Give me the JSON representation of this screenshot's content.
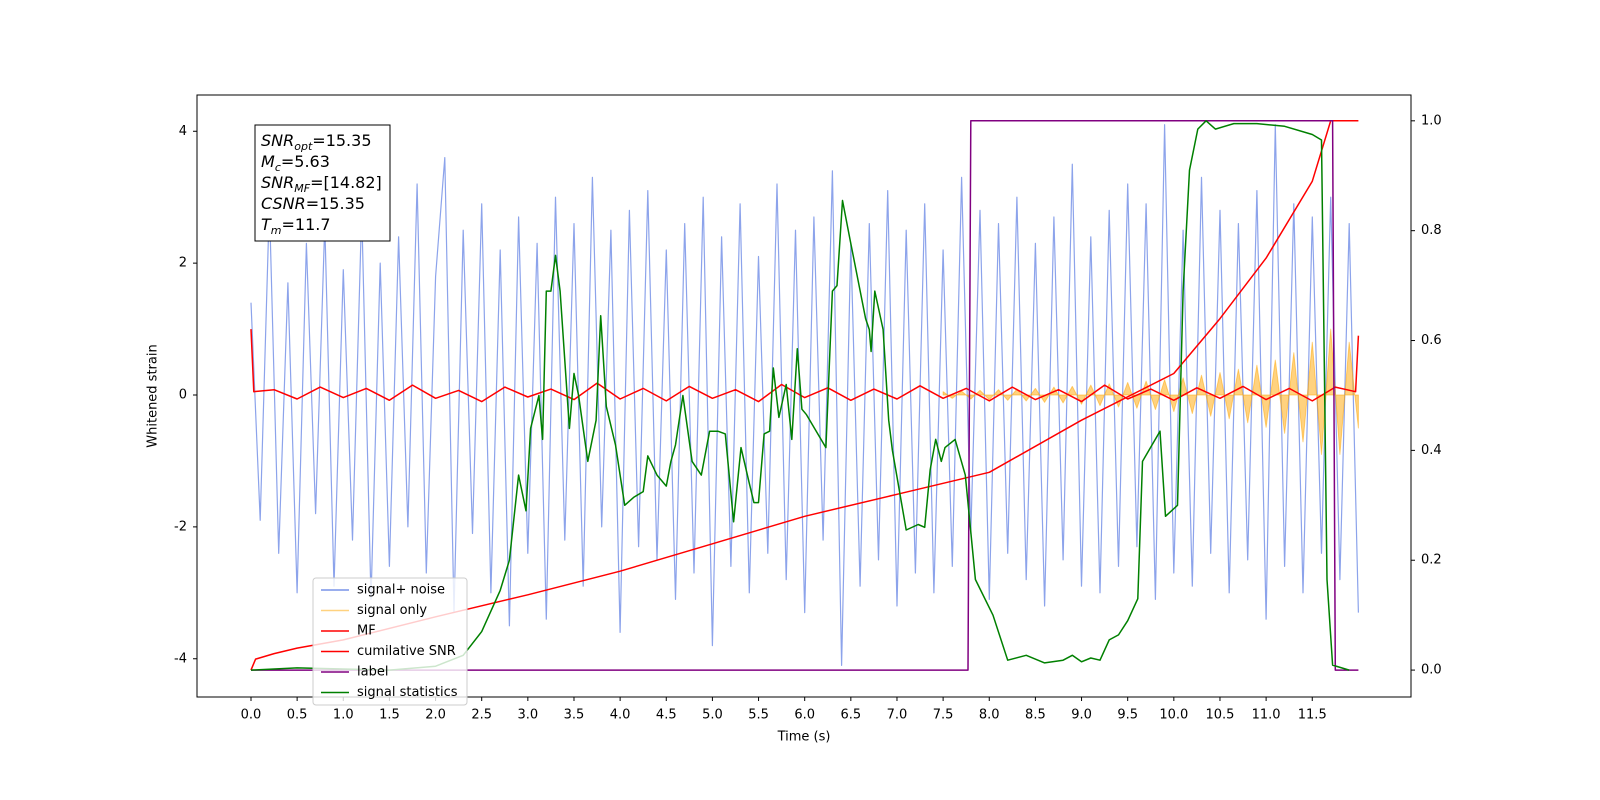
{
  "chart_data": {
    "type": "line",
    "x_label": "Time (s)",
    "y_label": "Whitened strain",
    "xlim": [
      -0.585,
      12.57
    ],
    "xticks": [
      {
        "value": 0,
        "label": "0.0"
      },
      {
        "value": 0.5,
        "label": "0.5"
      },
      {
        "value": 1,
        "label": "1.0"
      },
      {
        "value": 1.5,
        "label": "1.5"
      },
      {
        "value": 2,
        "label": "2.0"
      },
      {
        "value": 2.5,
        "label": "2.5"
      },
      {
        "value": 3,
        "label": "3.0"
      },
      {
        "value": 3.5,
        "label": "3.5"
      },
      {
        "value": 4,
        "label": "4.0"
      },
      {
        "value": 4.5,
        "label": "4.5"
      },
      {
        "value": 5,
        "label": "5.0"
      },
      {
        "value": 5.5,
        "label": "5.5"
      },
      {
        "value": 6,
        "label": "6.0"
      },
      {
        "value": 6.5,
        "label": "6.5"
      },
      {
        "value": 7,
        "label": "7.0"
      },
      {
        "value": 7.5,
        "label": "7.5"
      },
      {
        "value": 8,
        "label": "8.0"
      },
      {
        "value": 8.5,
        "label": "8.5"
      },
      {
        "value": 9,
        "label": "9.0"
      },
      {
        "value": 9.5,
        "label": "9.5"
      },
      {
        "value": 10,
        "label": "10.0"
      },
      {
        "value": 10.5,
        "label": "10.5"
      },
      {
        "value": 11,
        "label": "11.0"
      },
      {
        "value": 11.5,
        "label": "11.5"
      }
    ],
    "ylim": [
      -4.58,
      4.55
    ],
    "yticks": [
      -4,
      -2,
      0,
      2,
      4
    ],
    "y2lim": [
      -0.049,
      1.047
    ],
    "y2ticks": [
      {
        "value": 0,
        "label": "0.0"
      },
      {
        "value": 0.2,
        "label": "0.2"
      },
      {
        "value": 0.4,
        "label": "0.4"
      },
      {
        "value": 0.6,
        "label": "0.6"
      },
      {
        "value": 0.8,
        "label": "0.8"
      },
      {
        "value": 1,
        "label": "1.0"
      }
    ],
    "textbox": [
      {
        "symbol": "SNR",
        "subscript": "opt",
        "text": "=15.35"
      },
      {
        "symbol": "M",
        "subscript": "c",
        "text": "=5.63"
      },
      {
        "symbol": "SNR",
        "subscript": "MF",
        "text": "=[14.82]"
      },
      {
        "symbol": "CSNR",
        "subscript": null,
        "text": "=15.35"
      },
      {
        "symbol": "T",
        "subscript": "m",
        "text": "=11.7"
      }
    ],
    "series": [
      {
        "name": "signal+ noise",
        "color": "#7893e8",
        "x": [
          0,
          0.1,
          0.2,
          0.3,
          0.4,
          0.5,
          0.6,
          0.7,
          0.8,
          0.9,
          1,
          1.1,
          1.2,
          1.3,
          1.4,
          1.5,
          1.6,
          1.7,
          1.8,
          1.9,
          2,
          2.1,
          2.2,
          2.3,
          2.4,
          2.5,
          2.6,
          2.7,
          2.8,
          2.9,
          3,
          3.1,
          3.2,
          3.3,
          3.4,
          3.5,
          3.6,
          3.7,
          3.8,
          3.9,
          4,
          4.1,
          4.2,
          4.3,
          4.4,
          4.5,
          4.6,
          4.7,
          4.8,
          4.9,
          5,
          5.1,
          5.2,
          5.3,
          5.4,
          5.5,
          5.6,
          5.7,
          5.8,
          5.9,
          6,
          6.1,
          6.2,
          6.3,
          6.4,
          6.5,
          6.6,
          6.7,
          6.8,
          6.9,
          7,
          7.1,
          7.2,
          7.3,
          7.4,
          7.5,
          7.6,
          7.7,
          7.8,
          7.9,
          8,
          8.1,
          8.2,
          8.3,
          8.4,
          8.5,
          8.6,
          8.7,
          8.8,
          8.9,
          9,
          9.1,
          9.2,
          9.3,
          9.4,
          9.5,
          9.6,
          9.7,
          9.8,
          9.9,
          10,
          10.1,
          10.2,
          10.3,
          10.4,
          10.5,
          10.6,
          10.7,
          10.8,
          10.9,
          11,
          11.1,
          11.2,
          11.3,
          11.4,
          11.5,
          11.6,
          11.7,
          11.8,
          11.9,
          12
        ],
        "values": [
          1.4,
          -1.9,
          2.9,
          -2.4,
          1.7,
          -3.0,
          2.3,
          -1.8,
          2.6,
          -2.9,
          1.9,
          -2.2,
          2.8,
          -3.1,
          2.0,
          -2.6,
          2.4,
          -2.0,
          3.2,
          -2.7,
          1.8,
          3.6,
          -3.3,
          2.5,
          -2.1,
          2.9,
          -3.0,
          2.2,
          -3.5,
          2.7,
          -2.4,
          2.3,
          -3.4,
          3.0,
          -2.2,
          2.6,
          -2.9,
          3.3,
          -2.0,
          2.5,
          -3.6,
          2.8,
          -2.3,
          3.1,
          -2.5,
          2.2,
          -3.1,
          2.6,
          -2.7,
          3.0,
          -3.8,
          2.4,
          -2.6,
          2.9,
          -3.0,
          2.1,
          -2.4,
          3.2,
          -2.8,
          2.5,
          -3.3,
          2.7,
          -2.2,
          3.4,
          -4.1,
          2.3,
          -2.9,
          2.6,
          -2.5,
          3.1,
          -3.2,
          2.5,
          -2.7,
          2.9,
          -3.0,
          2.2,
          -2.6,
          3.3,
          -2.1,
          2.8,
          -3.1,
          2.6,
          -2.4,
          3.0,
          -2.8,
          2.3,
          -3.2,
          2.7,
          -2.5,
          3.5,
          -2.9,
          2.4,
          -3.0,
          2.8,
          -2.6,
          3.2,
          -2.3,
          2.9,
          -3.1,
          4.1,
          -2.7,
          2.5,
          -2.9,
          3.3,
          -2.4,
          2.8,
          -3.0,
          2.6,
          -2.5,
          3.1,
          -3.4,
          4.1,
          -2.6,
          2.9,
          -3.0,
          2.7,
          -2.4,
          3.0,
          -2.8,
          2.6,
          -3.3
        ]
      },
      {
        "name": "signal only",
        "color": "#ffa500",
        "x": [
          7.5,
          7.6,
          7.7,
          7.8,
          7.9,
          8,
          8.1,
          8.2,
          8.3,
          8.4,
          8.5,
          8.6,
          8.7,
          8.8,
          8.9,
          9,
          9.1,
          9.2,
          9.3,
          9.4,
          9.5,
          9.6,
          9.7,
          9.8,
          9.9,
          10,
          10.1,
          10.2,
          10.3,
          10.4,
          10.5,
          10.6,
          10.7,
          10.8,
          10.9,
          11,
          11.1,
          11.2,
          11.3,
          11.4,
          11.5,
          11.6,
          11.7,
          11.8,
          11.9,
          12
        ],
        "values": [
          0.05,
          -0.05,
          0.06,
          -0.06,
          0.07,
          -0.07,
          0.08,
          -0.08,
          0.09,
          -0.09,
          0.1,
          -0.11,
          0.12,
          -0.12,
          0.13,
          -0.14,
          0.15,
          -0.16,
          0.17,
          -0.18,
          0.19,
          -0.2,
          0.21,
          -0.22,
          0.23,
          -0.25,
          0.26,
          -0.28,
          0.3,
          -0.32,
          0.34,
          -0.36,
          0.39,
          -0.42,
          0.45,
          -0.49,
          0.53,
          -0.58,
          0.64,
          -0.71,
          0.8,
          -0.9,
          1.0,
          -0.9,
          0.8,
          -0.5
        ]
      },
      {
        "name": "MF",
        "color": "#ff0000",
        "x": [
          0,
          0.03,
          0.25,
          0.5,
          0.75,
          1,
          1.25,
          1.5,
          1.75,
          2,
          2.25,
          2.5,
          2.75,
          3,
          3.25,
          3.5,
          3.75,
          4,
          4.25,
          4.5,
          4.75,
          5,
          5.25,
          5.5,
          5.75,
          6,
          6.25,
          6.5,
          6.75,
          7,
          7.25,
          7.5,
          7.75,
          8,
          8.25,
          8.5,
          8.75,
          9,
          9.25,
          9.5,
          9.75,
          10,
          10.25,
          10.5,
          10.75,
          11,
          11.25,
          11.5,
          11.75,
          11.97,
          12
        ],
        "values": [
          1.0,
          0.05,
          0.08,
          -0.06,
          0.12,
          -0.04,
          0.1,
          -0.08,
          0.15,
          -0.05,
          0.07,
          -0.1,
          0.12,
          -0.03,
          0.09,
          -0.07,
          0.18,
          -0.06,
          0.1,
          -0.09,
          0.13,
          -0.05,
          0.08,
          -0.1,
          0.16,
          -0.04,
          0.11,
          -0.08,
          0.09,
          -0.06,
          0.14,
          -0.05,
          0.1,
          -0.09,
          0.12,
          -0.07,
          0.08,
          -0.1,
          0.15,
          -0.06,
          0.09,
          -0.08,
          0.11,
          -0.05,
          0.13,
          -0.07,
          0.1,
          -0.09,
          0.12,
          0.05,
          0.9
        ]
      },
      {
        "name": "cumilative SNR",
        "color": "#ff0000",
        "axis": "y2",
        "x": [
          0,
          0.05,
          0.25,
          0.5,
          1,
          2,
          3,
          4,
          5,
          6,
          7,
          8,
          9,
          10,
          10.5,
          11,
          11.5,
          11.7,
          12
        ],
        "values": [
          0,
          0.02,
          0.03,
          0.04,
          0.055,
          0.097,
          0.137,
          0.18,
          0.23,
          0.28,
          0.32,
          0.36,
          0.455,
          0.54,
          0.64,
          0.75,
          0.89,
          1.0,
          1.0
        ]
      },
      {
        "name": "label",
        "color": "#800080",
        "axis": "y2",
        "x": [
          0,
          7.77,
          7.8,
          11.72,
          11.75,
          12
        ],
        "values": [
          0,
          0,
          1,
          1,
          0,
          0
        ]
      },
      {
        "name": "signal statistics",
        "color": "#008000",
        "axis": "y2",
        "x": [
          0,
          0.5,
          1,
          1.5,
          2,
          2.3,
          2.5,
          2.7,
          2.8,
          2.9,
          2.98,
          3.03,
          3.12,
          3.16,
          3.2,
          3.25,
          3.3,
          3.35,
          3.45,
          3.5,
          3.55,
          3.65,
          3.74,
          3.79,
          3.85,
          3.95,
          4.05,
          4.15,
          4.25,
          4.3,
          4.4,
          4.5,
          4.55,
          4.6,
          4.68,
          4.78,
          4.88,
          4.97,
          5.06,
          5.14,
          5.23,
          5.31,
          5.4,
          5.45,
          5.5,
          5.56,
          5.62,
          5.66,
          5.72,
          5.8,
          5.86,
          5.92,
          5.97,
          6.02,
          6.23,
          6.3,
          6.35,
          6.41,
          6.49,
          6.66,
          6.7,
          6.72,
          6.76,
          6.85,
          6.91,
          6.95,
          7.1,
          7.23,
          7.3,
          7.36,
          7.42,
          7.48,
          7.52,
          7.63,
          7.74,
          7.85,
          8.04,
          8.2,
          8.4,
          8.6,
          8.8,
          8.9,
          9.0,
          9.1,
          9.2,
          9.3,
          9.4,
          9.5,
          9.61,
          9.66,
          9.85,
          9.91,
          10.04,
          10.1,
          10.17,
          10.26,
          10.35,
          10.45,
          10.65,
          10.9,
          11.2,
          11.5,
          11.6,
          11.66,
          11.72,
          11.9
        ],
        "values": [
          0,
          0.004,
          0.002,
          0,
          0.007,
          0.027,
          0.07,
          0.145,
          0.2,
          0.355,
          0.29,
          0.44,
          0.5,
          0.42,
          0.69,
          0.69,
          0.755,
          0.69,
          0.44,
          0.54,
          0.5,
          0.38,
          0.455,
          0.645,
          0.48,
          0.41,
          0.3,
          0.315,
          0.325,
          0.39,
          0.355,
          0.335,
          0.38,
          0.41,
          0.5,
          0.38,
          0.355,
          0.435,
          0.435,
          0.43,
          0.27,
          0.405,
          0.34,
          0.305,
          0.305,
          0.43,
          0.435,
          0.55,
          0.46,
          0.52,
          0.42,
          0.585,
          0.475,
          0.465,
          0.405,
          0.69,
          0.7,
          0.855,
          0.785,
          0.64,
          0.62,
          0.58,
          0.69,
          0.62,
          0.455,
          0.4,
          0.255,
          0.265,
          0.26,
          0.365,
          0.42,
          0.38,
          0.405,
          0.42,
          0.355,
          0.165,
          0.1,
          0.018,
          0.027,
          0.013,
          0.018,
          0.027,
          0.015,
          0.022,
          0.018,
          0.055,
          0.064,
          0.09,
          0.13,
          0.38,
          0.435,
          0.28,
          0.3,
          0.69,
          0.91,
          0.985,
          1.0,
          0.985,
          0.995,
          0.995,
          0.99,
          0.975,
          0.965,
          0.165,
          0.009,
          0
        ]
      }
    ]
  }
}
